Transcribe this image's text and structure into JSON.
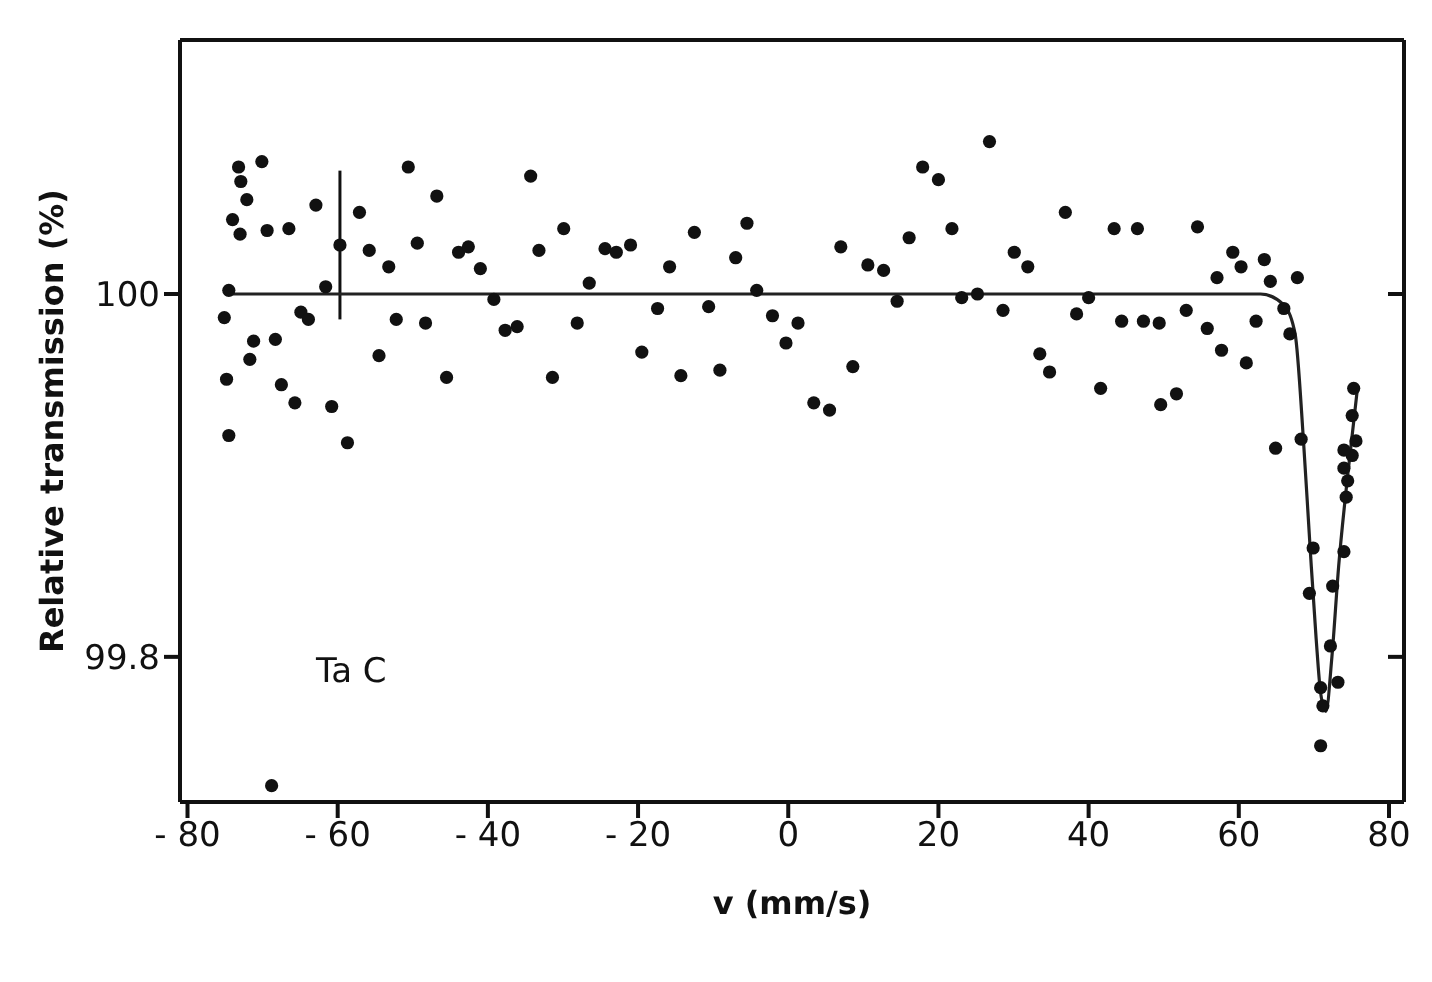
{
  "chart_data": {
    "type": "scatter",
    "xlabel": "v (mm/s)",
    "ylabel": "Relative transmission (%)",
    "annotations": [
      "Ta C"
    ],
    "xlim": [
      -81,
      82
    ],
    "ylim": [
      99.72,
      100.14
    ],
    "xticks": [
      -80,
      -60,
      -40,
      -20,
      0,
      20,
      40,
      60,
      80
    ],
    "yticks": [
      99.8,
      100
    ],
    "grid": false,
    "legend": false,
    "series": [
      {
        "color": "#111111",
        "marker": "circle",
        "x": [
          -73.2,
          -72.9,
          -72.1,
          -70.1,
          -74.0,
          -73.0,
          -69.4,
          -66.5,
          -62.9,
          -59.7,
          -57.1,
          -55.8,
          -53.2,
          -50.6,
          -49.4,
          -46.8,
          -43.9,
          -42.6,
          -41.0,
          -34.3,
          -33.2,
          -29.9,
          -24.4,
          -22.9,
          -21.0,
          -15.8,
          -12.5,
          -26.5,
          -61.6,
          -74.5,
          -75.1,
          -71.7,
          -71.2,
          -68.3,
          -64.9,
          -63.9,
          -74.8,
          -67.5,
          -65.7,
          -60.8,
          -74.5,
          -58.7,
          -54.5,
          -52.2,
          -48.3,
          -45.5,
          -39.2,
          -37.7,
          -36.1,
          -31.4,
          -28.1,
          -19.5,
          -17.4,
          -14.3,
          -10.6,
          -68.8,
          -5.5,
          -7.0,
          -4.2,
          -9.1,
          -2.1,
          1.3,
          -0.3,
          3.4,
          5.5,
          7.0,
          8.6,
          10.6,
          12.7,
          14.5,
          16.1,
          17.9,
          20.0,
          21.8,
          23.1,
          25.2,
          26.8,
          28.6,
          30.1,
          31.9,
          33.5,
          34.8,
          36.9,
          38.4,
          40.0,
          41.6,
          43.4,
          44.4,
          46.5,
          47.3,
          49.4,
          49.6,
          51.7,
          53.0,
          54.5,
          55.8,
          57.1,
          57.7,
          59.2,
          60.3,
          61.0,
          62.3,
          63.4,
          64.2,
          66.0,
          66.8,
          67.8,
          64.9,
          68.3,
          69.9,
          69.4,
          70.9,
          71.2,
          70.9,
          72.2,
          73.2,
          72.5,
          74.0,
          74.3,
          74.5,
          74.0,
          75.1,
          75.6,
          75.3,
          75.1,
          74.0
        ],
        "values": [
          100.07,
          100.062,
          100.052,
          100.073,
          100.041,
          100.033,
          100.035,
          100.036,
          100.049,
          100.027,
          100.045,
          100.024,
          100.015,
          100.07,
          100.028,
          100.054,
          100.023,
          100.026,
          100.014,
          100.065,
          100.024,
          100.036,
          100.025,
          100.023,
          100.027,
          100.015,
          100.034,
          100.006,
          100.004,
          100.002,
          99.987,
          99.964,
          99.974,
          99.975,
          99.99,
          99.986,
          99.953,
          99.95,
          99.94,
          99.938,
          99.922,
          99.918,
          99.966,
          99.986,
          99.984,
          99.954,
          99.997,
          99.98,
          99.982,
          99.954,
          99.984,
          99.968,
          99.992,
          99.955,
          99.993,
          99.729,
          100.039,
          100.02,
          100.002,
          99.958,
          99.988,
          99.984,
          99.973,
          99.94,
          99.936,
          100.026,
          99.96,
          100.016,
          100.013,
          99.996,
          100.031,
          100.07,
          100.063,
          100.036,
          99.998,
          100.0,
          100.084,
          99.991,
          100.023,
          100.015,
          99.967,
          99.957,
          100.045,
          99.989,
          99.998,
          99.948,
          100.036,
          99.985,
          100.036,
          99.985,
          99.984,
          99.939,
          99.945,
          99.991,
          100.037,
          99.981,
          100.009,
          99.969,
          100.023,
          100.015,
          99.962,
          99.985,
          100.019,
          100.007,
          99.992,
          99.978,
          100.009,
          99.915,
          99.92,
          99.86,
          99.835,
          99.783,
          99.773,
          99.751,
          99.806,
          99.786,
          99.839,
          99.858,
          99.888,
          99.897,
          99.904,
          99.911,
          99.919,
          99.948,
          99.933,
          99.914
        ],
        "errors": [
          null,
          null,
          null,
          null,
          null,
          null,
          null,
          null,
          null,
          0.041,
          null,
          null,
          null,
          null,
          null,
          null,
          null,
          null,
          null,
          null,
          null,
          null,
          null,
          null,
          null,
          null,
          null,
          null,
          null,
          null,
          null,
          null,
          null,
          null,
          null,
          null,
          null,
          null,
          null,
          null,
          null,
          null,
          null,
          null,
          null,
          null,
          null,
          null,
          null,
          null,
          null,
          null,
          null,
          null,
          null,
          null,
          null,
          null,
          null,
          null,
          null,
          null,
          null,
          null,
          null,
          null,
          null,
          null,
          null,
          null,
          null,
          null,
          null,
          null,
          null,
          null,
          null,
          null,
          null,
          null,
          null,
          null,
          null,
          null,
          null,
          null,
          null,
          null,
          null,
          null,
          null,
          null,
          null,
          null,
          null,
          null,
          null,
          null,
          null,
          null,
          null,
          null,
          null,
          null,
          null,
          null,
          null,
          null,
          null,
          null,
          null,
          null,
          null,
          null,
          null,
          null,
          null,
          null,
          null,
          null,
          null,
          null,
          null,
          null,
          null,
          null
        ]
      },
      {
        "type": "line",
        "color": "#222222",
        "marker": "none",
        "line_style": "solid",
        "x": [
          -75,
          62.9,
          66,
          67.5,
          68.6,
          69.5,
          70.3,
          70.9,
          71.6,
          72.4,
          73.3,
          74.5,
          75.8
        ],
        "values": [
          100.0,
          100.0,
          99.994,
          99.978,
          99.92,
          99.86,
          99.81,
          99.78,
          99.77,
          99.8,
          99.85,
          99.9,
          99.948
        ]
      }
    ]
  }
}
